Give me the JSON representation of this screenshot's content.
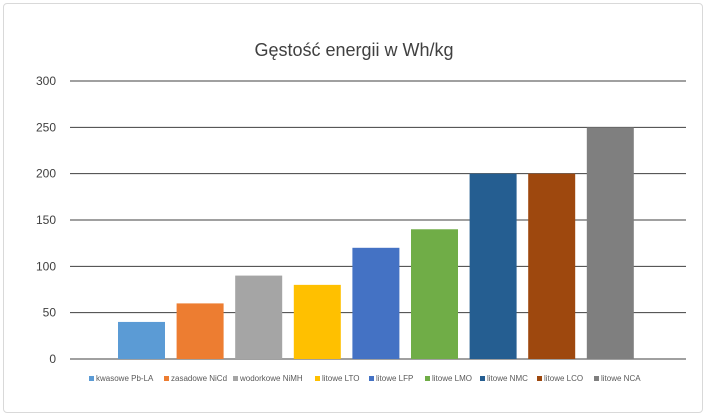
{
  "chart_data": {
    "type": "bar",
    "title": "Gęstość energii w Wh/kg",
    "xlabel": "",
    "ylabel": "",
    "ylim": [
      0,
      300
    ],
    "yticks": [
      0,
      50,
      100,
      150,
      200,
      250,
      300
    ],
    "grid": true,
    "legend_position": "bottom",
    "series": [
      {
        "name": "kwasowe Pb-LA",
        "value": 40,
        "color": "#5b9bd5"
      },
      {
        "name": "zasadowe NiCd",
        "value": 60,
        "color": "#ed7d31"
      },
      {
        "name": "wodorkowe NiMH",
        "value": 90,
        "color": "#a5a5a5"
      },
      {
        "name": "litowe LTO",
        "value": 80,
        "color": "#ffc000"
      },
      {
        "name": "litowe LFP",
        "value": 120,
        "color": "#4472c4"
      },
      {
        "name": "litowe LMO",
        "value": 140,
        "color": "#70ad47"
      },
      {
        "name": "litowe NMC",
        "value": 200,
        "color": "#255e91"
      },
      {
        "name": "litowe LCO",
        "value": 200,
        "color": "#9e480e"
      },
      {
        "name": "litowe NCA",
        "value": 250,
        "color": "#7f7f7f"
      }
    ]
  }
}
